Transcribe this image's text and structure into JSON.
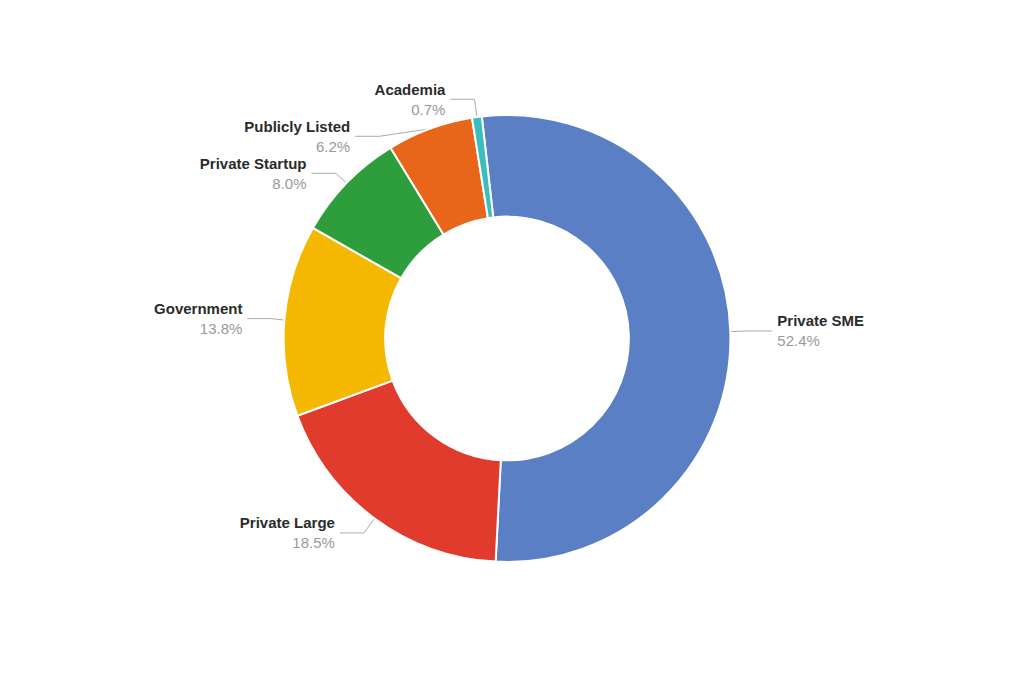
{
  "chart_data": {
    "type": "donut",
    "categories": [
      "Private SME",
      "Private Large",
      "Government",
      "Private Startup",
      "Publicly Listed",
      "Academia"
    ],
    "values": [
      52.4,
      18.5,
      13.8,
      8.0,
      6.2,
      0.7
    ],
    "value_labels": [
      "52.4%",
      "18.5%",
      "13.8%",
      "8.0%",
      "6.2%",
      "0.7%"
    ],
    "colors": [
      "#5b7fc4",
      "#e03b2c",
      "#f5b800",
      "#2e9e3d",
      "#e8651a",
      "#3bbcbf"
    ],
    "data_labels": true
  }
}
